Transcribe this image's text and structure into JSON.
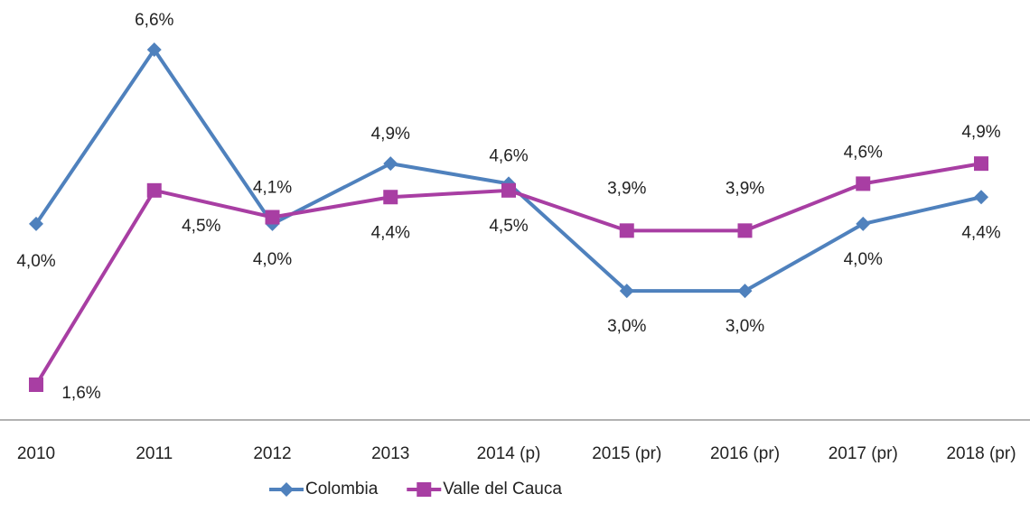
{
  "chart_data": {
    "type": "line",
    "categories": [
      "2010",
      "2011",
      "2012",
      "2013",
      "2014 (p)",
      "2015 (pr)",
      "2016 (pr)",
      "2017 (pr)",
      "2018 (pr)"
    ],
    "series": [
      {
        "name": "Colombia",
        "color": "#4f81bd",
        "marker": "diamond",
        "values": [
          4.0,
          6.6,
          4.0,
          4.9,
          4.6,
          3.0,
          3.0,
          4.0,
          4.4
        ],
        "value_labels": [
          "4,0%",
          "6,6%",
          "4,0%",
          "4,9%",
          "4,6%",
          "3,0%",
          "3,0%",
          "4,0%",
          "4,4%"
        ]
      },
      {
        "name": "Valle del Cauca",
        "color": "#a83ea3",
        "marker": "square",
        "values": [
          1.6,
          4.5,
          4.1,
          4.4,
          4.5,
          3.9,
          3.9,
          4.6,
          4.9
        ],
        "value_labels": [
          "1,6%",
          "4,5%",
          "4,1%",
          "4,4%",
          "4,5%",
          "3,9%",
          "3,9%",
          "4,6%",
          "4,9%"
        ]
      }
    ],
    "legend": "bottom"
  }
}
